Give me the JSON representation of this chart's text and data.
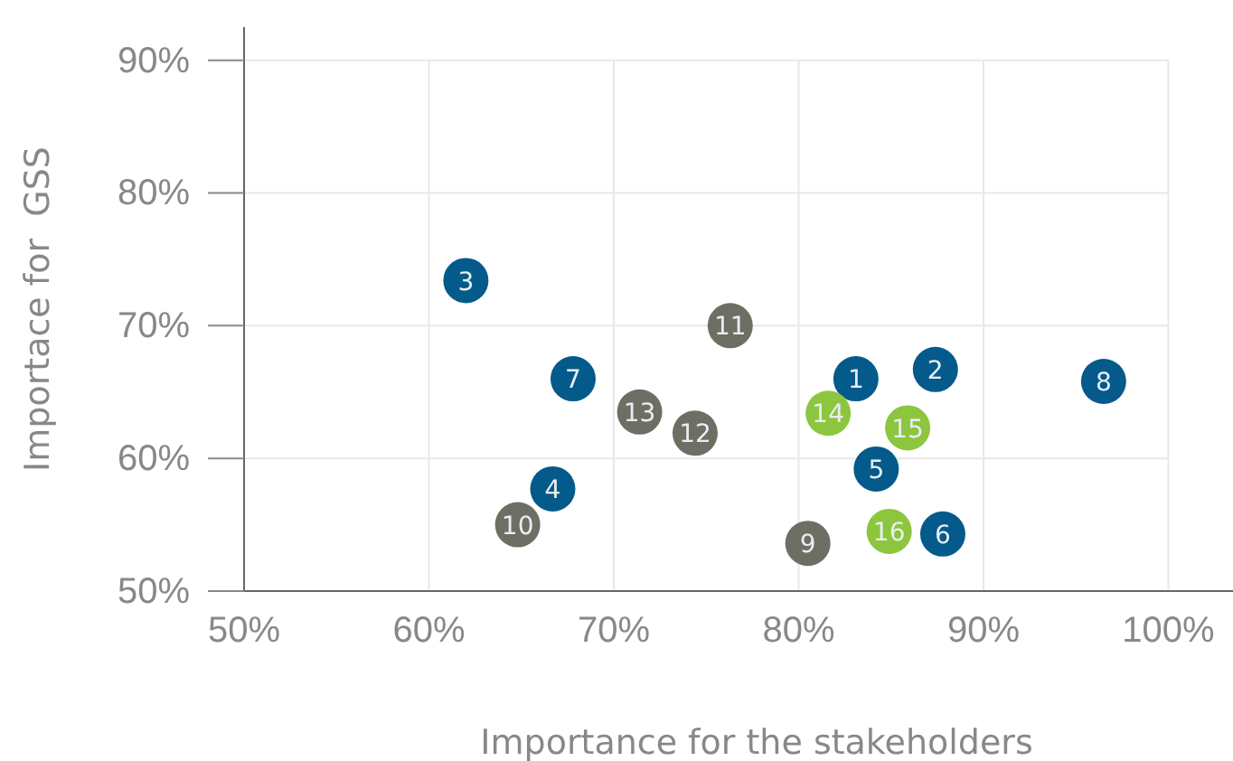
{
  "chart_data": {
    "type": "scatter",
    "xlabel": "Importance for the stakeholders",
    "ylabel": "Importace for  GSS",
    "xlim": [
      50,
      103.5
    ],
    "ylim": [
      50,
      92.5
    ],
    "xticks": [
      {
        "value": 50,
        "label": "50%"
      },
      {
        "value": 60,
        "label": "60%"
      },
      {
        "value": 70,
        "label": "70%"
      },
      {
        "value": 80,
        "label": "80%"
      },
      {
        "value": 90,
        "label": "90%"
      },
      {
        "value": 100,
        "label": "100%"
      }
    ],
    "yticks": [
      {
        "value": 50,
        "label": "50%"
      },
      {
        "value": 60,
        "label": "60%"
      },
      {
        "value": 70,
        "label": "70%"
      },
      {
        "value": 80,
        "label": "80%"
      },
      {
        "value": 90,
        "label": "90%"
      }
    ],
    "grid": true,
    "marker": "circle",
    "series": [
      {
        "color": "#045a8a",
        "x": [
          83.1,
          87.4,
          62.0,
          66.7,
          84.2,
          87.8,
          67.8,
          96.5
        ],
        "values": [
          66.0,
          66.7,
          73.4,
          57.7,
          59.2,
          54.3,
          66.0,
          65.8
        ]
      },
      {
        "color": "#6e6e64",
        "x": [
          80.5,
          64.8,
          76.3,
          74.4,
          71.4
        ],
        "values": [
          53.6,
          55.0,
          70.0,
          61.9,
          63.5
        ]
      },
      {
        "color": "#8cc63e",
        "x": [
          81.6,
          85.9,
          84.9
        ],
        "values": [
          63.4,
          62.3,
          54.5
        ]
      }
    ],
    "annotations": [
      {
        "text": "1",
        "x": 83.1,
        "y": 66.0
      },
      {
        "text": "2",
        "x": 87.4,
        "y": 66.7
      },
      {
        "text": "3",
        "x": 62.0,
        "y": 73.4
      },
      {
        "text": "4",
        "x": 66.7,
        "y": 57.7
      },
      {
        "text": "5",
        "x": 84.2,
        "y": 59.2
      },
      {
        "text": "6",
        "x": 87.8,
        "y": 54.3
      },
      {
        "text": "7",
        "x": 67.8,
        "y": 66.0
      },
      {
        "text": "8",
        "x": 96.5,
        "y": 65.8
      },
      {
        "text": "9",
        "x": 80.5,
        "y": 53.6
      },
      {
        "text": "10",
        "x": 64.8,
        "y": 55.0
      },
      {
        "text": "11",
        "x": 76.3,
        "y": 70.0
      },
      {
        "text": "12",
        "x": 74.4,
        "y": 61.9
      },
      {
        "text": "13",
        "x": 71.4,
        "y": 63.5
      },
      {
        "text": "14",
        "x": 81.6,
        "y": 63.4
      },
      {
        "text": "15",
        "x": 85.9,
        "y": 62.3
      },
      {
        "text": "16",
        "x": 84.9,
        "y": 54.5
      }
    ]
  }
}
